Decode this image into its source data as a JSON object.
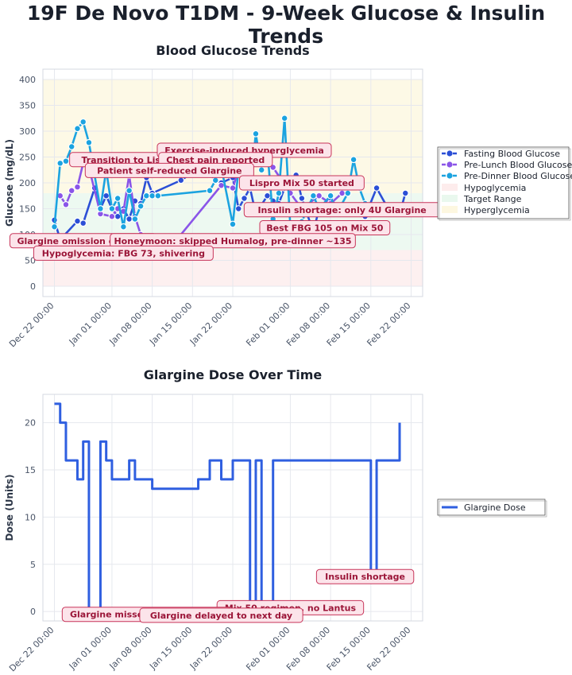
{
  "title": "19F De Novo T1DM - 9-Week Glucose & Insulin Trends",
  "colors": {
    "fasting": "#2b4fd6",
    "prelunch": "#8a55e8",
    "predinner": "#1ba3e0",
    "glargine": "#2f5fe0",
    "hypo_band": "#fdecec",
    "target_band": "#e9f8ee",
    "hyper_band": "#fdf7e0",
    "annotation_fill": "#fce4ea",
    "annotation_border": "#c8355a"
  },
  "chart_data": [
    {
      "type": "line",
      "title": "Blood Glucose Trends",
      "ylabel": "Glucose (mg/dL)",
      "xlabel": "",
      "x_ticks": [
        "Dec 22 00:00",
        "Jan 01 00:00",
        "Jan 08 00:00",
        "Jan 15 00:00",
        "Jan 22 00:00",
        "Feb 01 00:00",
        "Feb 08 00:00",
        "Feb 15 00:00",
        "Feb 22 00:00"
      ],
      "y_ticks": [
        0,
        50,
        100,
        150,
        200,
        250,
        300,
        350,
        400
      ],
      "xlim": [
        "2024-12-20",
        "2025-02-24"
      ],
      "ylim": [
        -20,
        420
      ],
      "grid": true,
      "legend_position": "right",
      "bands": [
        {
          "name": "Hypoglycemia",
          "from": 0,
          "to": 70
        },
        {
          "name": "Target Range",
          "from": 70,
          "to": 180
        },
        {
          "name": "Hyperglycemia",
          "from": 180,
          "to": 400
        }
      ],
      "series": [
        {
          "name": "Fasting Blood Glucose",
          "points": [
            [
              "2024-12-22",
              128
            ],
            [
              "2024-12-23",
              90
            ],
            [
              "2024-12-26",
              126
            ],
            [
              "2024-12-27",
              122
            ],
            [
              "2024-12-29",
              190
            ],
            [
              "2024-12-30",
              150
            ],
            [
              "2024-12-31",
              175
            ],
            [
              "2025-01-01",
              150
            ],
            [
              "2025-01-02",
              135
            ],
            [
              "2025-01-03",
              150
            ],
            [
              "2025-01-04",
              130
            ],
            [
              "2025-01-05",
              165
            ],
            [
              "2025-01-06",
              160
            ],
            [
              "2025-01-07",
              210
            ],
            [
              "2025-01-08",
              180
            ],
            [
              "2025-01-13",
              205
            ],
            [
              "2025-01-15",
              220
            ],
            [
              "2025-01-18",
              215
            ],
            [
              "2025-01-20",
              200
            ],
            [
              "2025-01-22",
              210
            ],
            [
              "2025-01-23",
              150
            ],
            [
              "2025-01-24",
              170
            ],
            [
              "2025-01-25",
              190
            ],
            [
              "2025-01-26",
              140
            ],
            [
              "2025-01-28",
              175
            ],
            [
              "2025-01-29",
              165
            ],
            [
              "2025-01-30",
              160
            ],
            [
              "2025-01-31",
              190
            ],
            [
              "2025-02-01",
              185
            ],
            [
              "2025-02-02",
              215
            ],
            [
              "2025-02-03",
              170
            ],
            [
              "2025-02-05",
              105
            ],
            [
              "2025-02-06",
              150
            ],
            [
              "2025-02-08",
              170
            ],
            [
              "2025-02-10",
              140
            ],
            [
              "2025-02-12",
              145
            ],
            [
              "2025-02-14",
              135
            ],
            [
              "2025-02-16",
              190
            ],
            [
              "2025-02-18",
              150
            ],
            [
              "2025-02-20",
              140
            ],
            [
              "2025-02-21",
              180
            ]
          ]
        },
        {
          "name": "Pre-Lunch Blood Glucose",
          "points": [
            [
              "2024-12-23",
              175
            ],
            [
              "2024-12-24",
              158
            ],
            [
              "2024-12-25",
              185
            ],
            [
              "2024-12-26",
              192
            ],
            [
              "2024-12-27",
              238
            ],
            [
              "2024-12-28",
              230
            ],
            [
              "2024-12-30",
              140
            ],
            [
              "2025-01-01",
              135
            ],
            [
              "2025-01-02",
              150
            ],
            [
              "2025-01-03",
              145
            ],
            [
              "2025-01-04",
              215
            ],
            [
              "2025-01-05",
              135
            ],
            [
              "2025-01-06",
              100
            ],
            [
              "2025-01-11",
              73
            ],
            [
              "2025-01-20",
              195
            ],
            [
              "2025-01-22",
              190
            ],
            [
              "2025-01-24",
              260
            ],
            [
              "2025-01-26",
              275
            ],
            [
              "2025-01-27",
              250
            ],
            [
              "2025-01-29",
              230
            ],
            [
              "2025-02-01",
              180
            ],
            [
              "2025-02-03",
              150
            ],
            [
              "2025-02-06",
              175
            ],
            [
              "2025-02-08",
              160
            ],
            [
              "2025-02-10",
              180
            ]
          ]
        },
        {
          "name": "Pre-Dinner Blood Glucose",
          "points": [
            [
              "2024-12-22",
              115
            ],
            [
              "2024-12-23",
              238
            ],
            [
              "2024-12-24",
              242
            ],
            [
              "2024-12-25",
              270
            ],
            [
              "2024-12-26",
              305
            ],
            [
              "2024-12-27",
              318
            ],
            [
              "2024-12-28",
              278
            ],
            [
              "2024-12-30",
              150
            ],
            [
              "2024-12-31",
              225
            ],
            [
              "2025-01-01",
              150
            ],
            [
              "2025-01-02",
              170
            ],
            [
              "2025-01-03",
              115
            ],
            [
              "2025-01-04",
              185
            ],
            [
              "2025-01-05",
              130
            ],
            [
              "2025-01-06",
              155
            ],
            [
              "2025-01-07",
              175
            ],
            [
              "2025-01-08",
              175
            ],
            [
              "2025-01-09",
              175
            ],
            [
              "2025-01-18",
              185
            ],
            [
              "2025-01-19",
              205
            ],
            [
              "2025-01-20",
              230
            ],
            [
              "2025-01-22",
              120
            ],
            [
              "2025-01-23",
              225
            ],
            [
              "2025-01-25",
              190
            ],
            [
              "2025-01-26",
              295
            ],
            [
              "2025-01-27",
              225
            ],
            [
              "2025-01-28",
              265
            ],
            [
              "2025-01-29",
              130
            ],
            [
              "2025-01-30",
              180
            ],
            [
              "2025-01-31",
              325
            ],
            [
              "2025-02-01",
              115
            ],
            [
              "2025-02-03",
              125
            ],
            [
              "2025-02-05",
              175
            ],
            [
              "2025-02-06",
              150
            ],
            [
              "2025-02-08",
              175
            ],
            [
              "2025-02-09",
              140
            ],
            [
              "2025-02-11",
              180
            ],
            [
              "2025-02-12",
              245
            ],
            [
              "2025-02-13",
              190
            ],
            [
              "2025-02-14",
              160
            ],
            [
              "2025-02-15",
              140
            ]
          ]
        }
      ],
      "annotations": [
        {
          "text": "Transition to Lispro",
          "x": "2025-01-04",
          "y": 245
        },
        {
          "text": "Exercise-induced hyperglycemia",
          "x": "2025-01-24",
          "y": 263
        },
        {
          "text": "Chest pain reported",
          "x": "2025-01-19",
          "y": 245
        },
        {
          "text": "Patient self-reduced Glargine",
          "x": "2025-01-11",
          "y": 224
        },
        {
          "text": "Lispro Mix 50 started",
          "x": "2025-02-03",
          "y": 200
        },
        {
          "text": "Insulin shortage: only 4U Glargine",
          "x": "2025-02-10",
          "y": 148
        },
        {
          "text": "Best FBG 105 on Mix 50",
          "x": "2025-02-07",
          "y": 113
        },
        {
          "text": "Glargine omission debated",
          "x": "2024-12-27",
          "y": 88
        },
        {
          "text": "Honeymoon: skipped Humalog, pre-dinner ~135",
          "x": "2025-01-22",
          "y": 88
        },
        {
          "text": "Hypoglycemia: FBG 73, shivering",
          "x": "2025-01-03",
          "y": 64
        }
      ]
    },
    {
      "type": "line",
      "title": "Glargine Dose Over Time",
      "ylabel": "Dose (Units)",
      "xlabel": "",
      "x_ticks": [
        "Dec 22 00:00",
        "Jan 01 00:00",
        "Jan 08 00:00",
        "Jan 15 00:00",
        "Jan 22 00:00",
        "Feb 01 00:00",
        "Feb 08 00:00",
        "Feb 15 00:00",
        "Feb 22 00:00"
      ],
      "y_ticks": [
        0,
        5,
        10,
        15,
        20
      ],
      "xlim": [
        "2024-12-20",
        "2025-02-24"
      ],
      "ylim": [
        -1,
        23
      ],
      "grid": true,
      "legend_position": "right",
      "series": [
        {
          "name": "Glargine Dose",
          "step": true,
          "points": [
            [
              "2024-12-22",
              22
            ],
            [
              "2024-12-23",
              20
            ],
            [
              "2024-12-24",
              16
            ],
            [
              "2024-12-26",
              14
            ],
            [
              "2024-12-27",
              18
            ],
            [
              "2024-12-28",
              0
            ],
            [
              "2024-12-30",
              18
            ],
            [
              "2024-12-31",
              16
            ],
            [
              "2025-01-01",
              14
            ],
            [
              "2025-01-04",
              16
            ],
            [
              "2025-01-05",
              14
            ],
            [
              "2025-01-08",
              13
            ],
            [
              "2025-01-16",
              14
            ],
            [
              "2025-01-18",
              16
            ],
            [
              "2025-01-20",
              14
            ],
            [
              "2025-01-22",
              16
            ],
            [
              "2025-01-25",
              0
            ],
            [
              "2025-01-26",
              16
            ],
            [
              "2025-01-27",
              0
            ],
            [
              "2025-01-29",
              16
            ],
            [
              "2025-02-15",
              4
            ],
            [
              "2025-02-16",
              16
            ],
            [
              "2025-02-20",
              20
            ]
          ]
        }
      ],
      "annotations": [
        {
          "text": "Insulin shortage",
          "x": "2025-02-14",
          "y": 3.7
        },
        {
          "text": "Mix 50 regimen, no Lantus",
          "x": "2025-02-01",
          "y": 0.4
        },
        {
          "text": "Glargine missed (team debate)",
          "x": "2025-01-07",
          "y": -0.3
        },
        {
          "text": "Glargine delayed to next day",
          "x": "2025-01-20",
          "y": -0.4
        }
      ]
    }
  ]
}
